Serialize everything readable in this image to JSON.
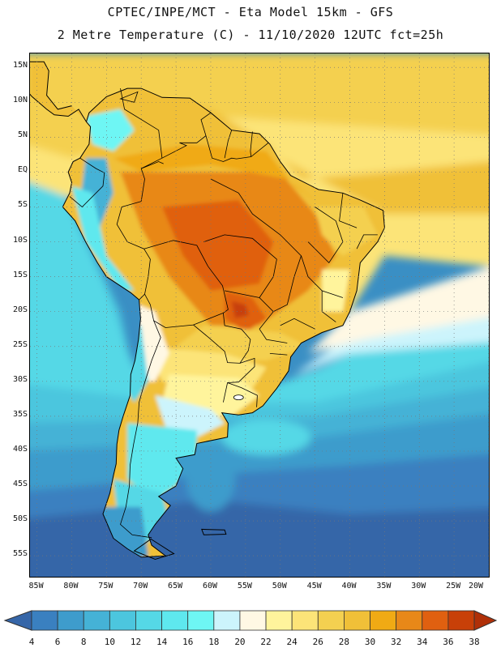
{
  "header": {
    "line1": "CPTEC/INPE/MCT -  Eta Model 15km - GFS",
    "line2": "2 Metre Temperature (C) - 11/10/2020 12UTC fct=25h"
  },
  "map": {
    "lat_labels": [
      "15N",
      "10N",
      "5N",
      "EQ",
      "5S",
      "10S",
      "15S",
      "20S",
      "25S",
      "30S",
      "35S",
      "40S",
      "45S",
      "50S",
      "55S"
    ],
    "lon_labels": [
      "85W",
      "80W",
      "75W",
      "70W",
      "65W",
      "60W",
      "55W",
      "50W",
      "45W",
      "40W",
      "35W",
      "30W",
      "25W",
      "20W"
    ],
    "extent": {
      "lon_min": -86,
      "lon_max": -20,
      "lat_min": -58,
      "lat_max": 17
    }
  },
  "colorbar": {
    "labels": [
      "4",
      "6",
      "8",
      "10",
      "12",
      "14",
      "16",
      "18",
      "20",
      "22",
      "24",
      "26",
      "28",
      "30",
      "32",
      "34",
      "36",
      "38"
    ],
    "colors": [
      "#3666a8",
      "#3a80c0",
      "#3e9ccc",
      "#45b2d6",
      "#4cc6de",
      "#55d8e6",
      "#5ee8ee",
      "#6ef6f4",
      "#ccf4fc",
      "#fff8e4",
      "#fff49c",
      "#fce478",
      "#f4d050",
      "#f0c038",
      "#f0aa14",
      "#e88818",
      "#e06010",
      "#c84008",
      "#b03008"
    ]
  },
  "chart_data": {
    "type": "heatmap",
    "title": "2 Metre Temperature (C) - 11/10/2020 12UTC fct=25h",
    "variable": "2 Metre Temperature",
    "units": "C",
    "model": "Eta Model 15km - GFS",
    "xlim": [
      -86,
      -20
    ],
    "ylim": [
      -58,
      17
    ],
    "scale_min": 4,
    "scale_max": 38,
    "scale_step": 2
  }
}
